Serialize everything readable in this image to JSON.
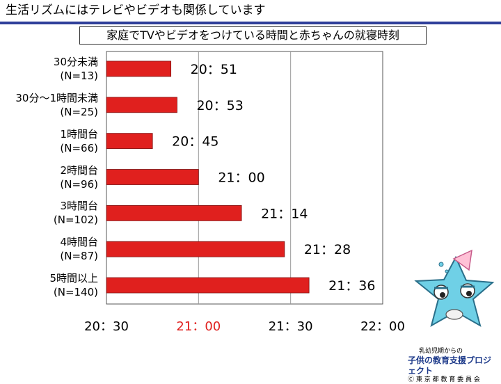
{
  "header": {
    "title": "生活リズムにはテレビやビデオも関係しています"
  },
  "chart_data": {
    "type": "bar",
    "orientation": "horizontal",
    "title": "家庭でTVやビデオをつけている時間と赤ちゃんの就寝時刻",
    "categories": [
      {
        "label": "30分未満",
        "n": "(N=13)"
      },
      {
        "label": "30分〜1時間未満",
        "n": "(N=25)"
      },
      {
        "label": "1時間台",
        "n": "(N=66)"
      },
      {
        "label": "2時間台",
        "n": "(N=96)"
      },
      {
        "label": "3時間台",
        "n": "(N=102)"
      },
      {
        "label": "4時間台",
        "n": "(N=87)"
      },
      {
        "label": "5時間以上",
        "n": "(N=140)"
      }
    ],
    "values_minutes": [
      1251,
      1253,
      1245,
      1260,
      1274,
      1288,
      1296
    ],
    "value_labels": [
      "20：51",
      "20：53",
      "20：45",
      "21：00",
      "21：14",
      "21：28",
      "21：36"
    ],
    "xlim_minutes": [
      1230,
      1320
    ],
    "xticks_minutes": [
      1230,
      1260,
      1290,
      1320
    ],
    "xtick_labels": [
      "20：30",
      "21：00",
      "21：30",
      "22：00"
    ],
    "highlight_tick_index": 1,
    "bar_color": "#e0201e",
    "highlight_tick_color": "#e0201e",
    "grid": true
  },
  "logo": {
    "line1": "乳幼児期からの",
    "line2": "子供の教育支援プロジェクト",
    "line3": "Ⓒ 東 京 都 教 育 委 員 会"
  }
}
